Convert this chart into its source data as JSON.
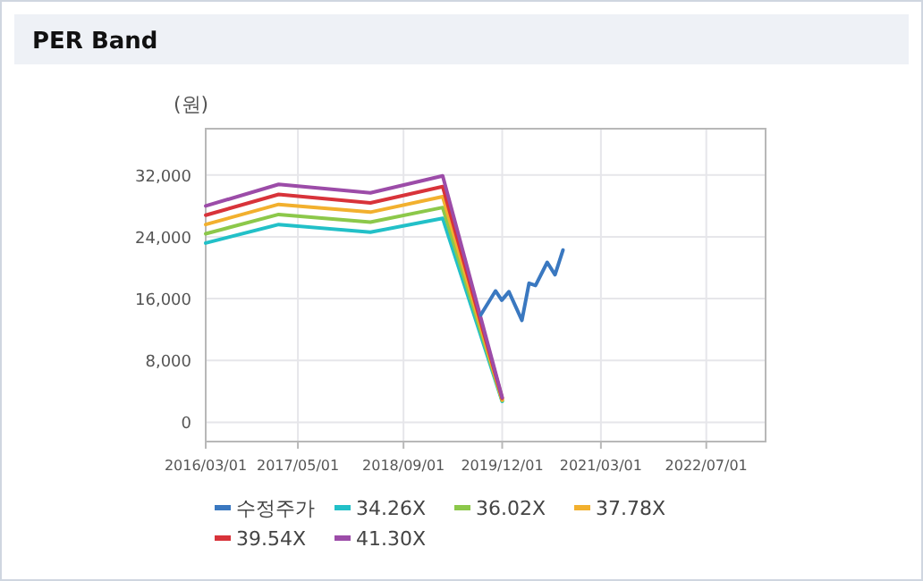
{
  "chart_data": {
    "type": "line",
    "title": "PER Band",
    "ylabel": "(원)",
    "xlim": [
      "2016-03-01",
      "2023-04-01"
    ],
    "xticks": [
      {
        "value": "2016-03-01",
        "label": "2016/03/01"
      },
      {
        "value": "2017-05-01",
        "label": "2017/05/01"
      },
      {
        "value": "2018-09-01",
        "label": "2018/09/01"
      },
      {
        "value": "2019-12-01",
        "label": "2019/12/01"
      },
      {
        "value": "2021-03-01",
        "label": "2021/03/01"
      },
      {
        "value": "2022-07-01",
        "label": "2022/07/01"
      }
    ],
    "ylim": [
      -2500,
      38000
    ],
    "yticks": [
      {
        "value": 0,
        "label": "0"
      },
      {
        "value": 8000,
        "label": "8,000"
      },
      {
        "value": 16000,
        "label": "16,000"
      },
      {
        "value": 24000,
        "label": "24,000"
      },
      {
        "value": 32000,
        "label": "32,000"
      }
    ],
    "grid": true,
    "legend": "bottom",
    "line_style": "solid",
    "marker": "none",
    "series": [
      {
        "name": "수정주가",
        "color": "#3a78c0",
        "x": [
          "2019-08-24",
          "2019-10-31",
          "2019-11-29",
          "2020-01-01",
          "2020-03-01",
          "2020-04-03",
          "2020-05-03",
          "2020-06-26",
          "2020-08-01",
          "2020-09-07"
        ],
        "values": [
          13900,
          17000,
          15800,
          16900,
          13200,
          18000,
          17700,
          20700,
          19100,
          22300
        ]
      },
      {
        "name": "34.26X",
        "color": "#22c0c8",
        "x": [
          "2016-03-01",
          "2017-02-01",
          "2018-04-01",
          "2019-03-01",
          "2019-12-01"
        ],
        "values": [
          23200,
          25600,
          24600,
          26400,
          2700
        ]
      },
      {
        "name": "36.02X",
        "color": "#8cc84a",
        "x": [
          "2016-03-01",
          "2017-02-01",
          "2018-04-01",
          "2019-03-01",
          "2019-12-01"
        ],
        "values": [
          24400,
          26900,
          25900,
          27800,
          2800
        ]
      },
      {
        "name": "37.78X",
        "color": "#f2b02e",
        "x": [
          "2016-03-01",
          "2017-02-01",
          "2018-04-01",
          "2019-03-01",
          "2019-12-01"
        ],
        "values": [
          25600,
          28200,
          27200,
          29200,
          2900
        ]
      },
      {
        "name": "39.54X",
        "color": "#d8333a",
        "x": [
          "2016-03-01",
          "2017-02-01",
          "2018-04-01",
          "2019-03-01",
          "2019-12-01"
        ],
        "values": [
          26800,
          29500,
          28400,
          30500,
          3100
        ]
      },
      {
        "name": "41.30X",
        "color": "#9c4ca8",
        "x": [
          "2016-03-01",
          "2017-02-01",
          "2018-04-01",
          "2019-03-01",
          "2019-12-01"
        ],
        "values": [
          28000,
          30800,
          29700,
          31900,
          3200
        ]
      }
    ]
  }
}
